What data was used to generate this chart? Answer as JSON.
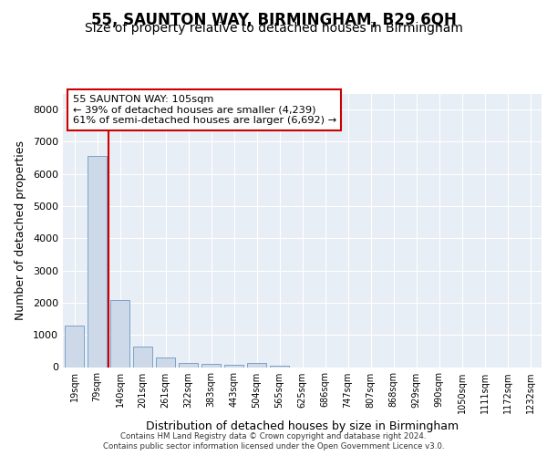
{
  "title1": "55, SAUNTON WAY, BIRMINGHAM, B29 6QH",
  "title2": "Size of property relative to detached houses in Birmingham",
  "xlabel": "Distribution of detached houses by size in Birmingham",
  "ylabel": "Number of detached properties",
  "categories": [
    "19sqm",
    "79sqm",
    "140sqm",
    "201sqm",
    "261sqm",
    "322sqm",
    "383sqm",
    "443sqm",
    "504sqm",
    "565sqm",
    "625sqm",
    "686sqm",
    "747sqm",
    "807sqm",
    "868sqm",
    "929sqm",
    "990sqm",
    "1050sqm",
    "1111sqm",
    "1172sqm",
    "1232sqm"
  ],
  "values": [
    1300,
    6550,
    2070,
    640,
    290,
    130,
    100,
    80,
    120,
    50,
    0,
    0,
    0,
    0,
    0,
    0,
    0,
    0,
    0,
    0,
    0
  ],
  "bar_color": "#cdd9e8",
  "bar_edge_color": "#7ba3c8",
  "vline_color": "#cc0000",
  "vline_pos": 1.5,
  "ylim": [
    0,
    8500
  ],
  "yticks": [
    0,
    1000,
    2000,
    3000,
    4000,
    5000,
    6000,
    7000,
    8000
  ],
  "annotation_text": "55 SAUNTON WAY: 105sqm\n← 39% of detached houses are smaller (4,239)\n61% of semi-detached houses are larger (6,692) →",
  "annotation_box_color": "#ffffff",
  "annotation_box_edge": "#cc0000",
  "footer1": "Contains HM Land Registry data © Crown copyright and database right 2024.",
  "footer2": "Contains public sector information licensed under the Open Government Licence v3.0.",
  "bg_color": "#e8eef5",
  "grid_color": "#ffffff",
  "title1_fontsize": 12,
  "title2_fontsize": 10,
  "ylabel_fontsize": 9,
  "xlabel_fontsize": 9
}
